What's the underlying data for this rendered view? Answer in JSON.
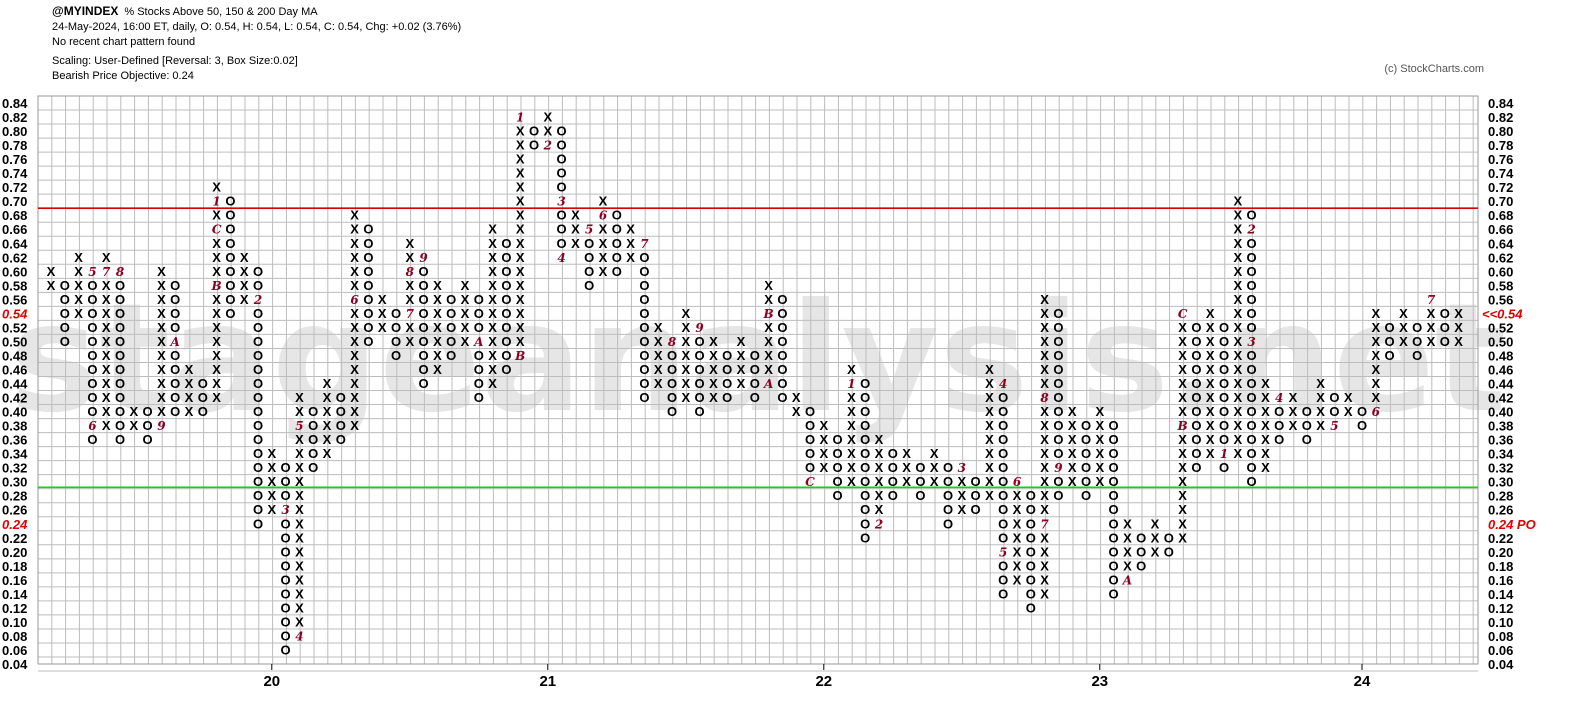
{
  "header": {
    "symbol": "@MYINDEX",
    "description": "% Stocks Above 50, 150 & 200 Day MA",
    "quote_line": "24-May-2024, 16:00 ET, daily, O: 0.54, H: 0.54, L: 0.54, C: 0.54, Chg: +0.02 (3.76%)",
    "pattern_line": "No recent chart pattern found",
    "scaling_line": "Scaling: User-Defined [Reversal: 3, Box Size:0.02]",
    "objective_line": "Bearish Price Objective: 0.24"
  },
  "copyright": "(c) StockCharts.com",
  "watermark": "stageanalysis.net",
  "colors": {
    "x": "#000000",
    "o": "#000000",
    "month": "#8b0020",
    "resistance": "#d00000",
    "support": "#00dd00",
    "grid": "#bdbdbd",
    "price_marker": "#e00000"
  },
  "chart_data": {
    "type": "point-and-figure",
    "box_size": 0.02,
    "reversal": 3,
    "ylim": [
      0.04,
      0.84
    ],
    "y_ticks": [
      0.84,
      0.82,
      0.8,
      0.78,
      0.76,
      0.74,
      0.72,
      0.7,
      0.68,
      0.66,
      0.64,
      0.62,
      0.6,
      0.58,
      0.56,
      0.54,
      0.52,
      0.5,
      0.48,
      0.46,
      0.44,
      0.42,
      0.4,
      0.38,
      0.36,
      0.34,
      0.32,
      0.3,
      0.28,
      0.26,
      0.24,
      0.22,
      0.2,
      0.18,
      0.16,
      0.14,
      0.12,
      0.1,
      0.08,
      0.06,
      0.04
    ],
    "year_labels": [
      {
        "label": "20",
        "column": 16
      },
      {
        "label": "21",
        "column": 36
      },
      {
        "label": "22",
        "column": 56
      },
      {
        "label": "23",
        "column": 76
      },
      {
        "label": "24",
        "column": 95
      }
    ],
    "horizontal_lines": [
      {
        "name": "resistance",
        "value": 0.69
      },
      {
        "name": "support",
        "value": 0.292
      }
    ],
    "last_price": {
      "value": 0.54,
      "label_right": "<<0.54",
      "label_left": "0.54"
    },
    "price_objective": {
      "value": 0.24,
      "label_right": "0.24 PO",
      "label_left": "0.24"
    },
    "columns": [
      {
        "t": "X",
        "lo": 0.58,
        "hi": 0.6
      },
      {
        "t": "O",
        "lo": 0.5,
        "hi": 0.58
      },
      {
        "t": "X",
        "lo": 0.54,
        "hi": 0.62
      },
      {
        "t": "O",
        "lo": 0.36,
        "hi": 0.6,
        "marks": [
          {
            "v": 0.6,
            "m": "5"
          },
          {
            "v": 0.38,
            "m": "6"
          }
        ]
      },
      {
        "t": "X",
        "lo": 0.38,
        "hi": 0.62,
        "marks": [
          {
            "v": 0.6,
            "m": "7"
          }
        ]
      },
      {
        "t": "O",
        "lo": 0.36,
        "hi": 0.6,
        "marks": [
          {
            "v": 0.6,
            "m": "8"
          }
        ]
      },
      {
        "t": "X",
        "lo": 0.38,
        "hi": 0.4
      },
      {
        "t": "O",
        "lo": 0.36,
        "hi": 0.4
      },
      {
        "t": "X",
        "lo": 0.38,
        "hi": 0.6,
        "marks": [
          {
            "v": 0.38,
            "m": "9"
          }
        ]
      },
      {
        "t": "O",
        "lo": 0.4,
        "hi": 0.58,
        "marks": [
          {
            "v": 0.5,
            "m": "A"
          }
        ]
      },
      {
        "t": "X",
        "lo": 0.4,
        "hi": 0.46
      },
      {
        "t": "O",
        "lo": 0.4,
        "hi": 0.44
      },
      {
        "t": "X",
        "lo": 0.42,
        "hi": 0.72,
        "marks": [
          {
            "v": 0.7,
            "m": "1"
          },
          {
            "v": 0.58,
            "m": "B"
          },
          {
            "v": 0.66,
            "m": "C"
          }
        ]
      },
      {
        "t": "O",
        "lo": 0.54,
        "hi": 0.7
      },
      {
        "t": "X",
        "lo": 0.56,
        "hi": 0.62
      },
      {
        "t": "O",
        "lo": 0.24,
        "hi": 0.6,
        "marks": [
          {
            "v": 0.56,
            "m": "2"
          }
        ]
      },
      {
        "t": "X",
        "lo": 0.26,
        "hi": 0.34
      },
      {
        "t": "O",
        "lo": 0.06,
        "hi": 0.32,
        "marks": [
          {
            "v": 0.26,
            "m": "3"
          }
        ]
      },
      {
        "t": "X",
        "lo": 0.08,
        "hi": 0.42,
        "marks": [
          {
            "v": 0.08,
            "m": "4"
          },
          {
            "v": 0.38,
            "m": "5"
          }
        ]
      },
      {
        "t": "O",
        "lo": 0.32,
        "hi": 0.4
      },
      {
        "t": "X",
        "lo": 0.34,
        "hi": 0.44
      },
      {
        "t": "O",
        "lo": 0.36,
        "hi": 0.42
      },
      {
        "t": "X",
        "lo": 0.38,
        "hi": 0.68,
        "marks": [
          {
            "v": 0.56,
            "m": "6"
          }
        ]
      },
      {
        "t": "O",
        "lo": 0.5,
        "hi": 0.66
      },
      {
        "t": "X",
        "lo": 0.52,
        "hi": 0.56
      },
      {
        "t": "O",
        "lo": 0.48,
        "hi": 0.54
      },
      {
        "t": "X",
        "lo": 0.5,
        "hi": 0.64,
        "marks": [
          {
            "v": 0.54,
            "m": "7"
          },
          {
            "v": 0.6,
            "m": "8"
          }
        ]
      },
      {
        "t": "O",
        "lo": 0.44,
        "hi": 0.62,
        "marks": [
          {
            "v": 0.62,
            "m": "9"
          }
        ]
      },
      {
        "t": "X",
        "lo": 0.46,
        "hi": 0.58
      },
      {
        "t": "O",
        "lo": 0.48,
        "hi": 0.56
      },
      {
        "t": "X",
        "lo": 0.5,
        "hi": 0.58
      },
      {
        "t": "O",
        "lo": 0.42,
        "hi": 0.56,
        "marks": [
          {
            "v": 0.5,
            "m": "A"
          }
        ]
      },
      {
        "t": "X",
        "lo": 0.44,
        "hi": 0.66
      },
      {
        "t": "O",
        "lo": 0.46,
        "hi": 0.64
      },
      {
        "t": "X",
        "lo": 0.48,
        "hi": 0.82,
        "marks": [
          {
            "v": 0.82,
            "m": "1"
          },
          {
            "v": 0.48,
            "m": "B"
          }
        ]
      },
      {
        "t": "O",
        "lo": 0.78,
        "hi": 0.8
      },
      {
        "t": "X",
        "lo": 0.78,
        "hi": 0.82,
        "marks": [
          {
            "v": 0.78,
            "m": "2"
          }
        ]
      },
      {
        "t": "O",
        "lo": 0.62,
        "hi": 0.8,
        "marks": [
          {
            "v": 0.7,
            "m": "3"
          },
          {
            "v": 0.62,
            "m": "4"
          }
        ]
      },
      {
        "t": "X",
        "lo": 0.64,
        "hi": 0.68
      },
      {
        "t": "O",
        "lo": 0.58,
        "hi": 0.66,
        "marks": [
          {
            "v": 0.66,
            "m": "5"
          }
        ]
      },
      {
        "t": "X",
        "lo": 0.6,
        "hi": 0.7,
        "marks": [
          {
            "v": 0.68,
            "m": "6"
          }
        ]
      },
      {
        "t": "O",
        "lo": 0.6,
        "hi": 0.68
      },
      {
        "t": "X",
        "lo": 0.62,
        "hi": 0.66
      },
      {
        "t": "O",
        "lo": 0.42,
        "hi": 0.64,
        "marks": [
          {
            "v": 0.64,
            "m": "7"
          }
        ]
      },
      {
        "t": "X",
        "lo": 0.44,
        "hi": 0.52
      },
      {
        "t": "O",
        "lo": 0.4,
        "hi": 0.5,
        "marks": [
          {
            "v": 0.5,
            "m": "8"
          }
        ]
      },
      {
        "t": "X",
        "lo": 0.42,
        "hi": 0.54
      },
      {
        "t": "O",
        "lo": 0.4,
        "hi": 0.52,
        "marks": [
          {
            "v": 0.52,
            "m": "9"
          }
        ]
      },
      {
        "t": "X",
        "lo": 0.42,
        "hi": 0.5
      },
      {
        "t": "O",
        "lo": 0.42,
        "hi": 0.48
      },
      {
        "t": "X",
        "lo": 0.44,
        "hi": 0.5
      },
      {
        "t": "O",
        "lo": 0.42,
        "hi": 0.48
      },
      {
        "t": "X",
        "lo": 0.44,
        "hi": 0.58,
        "marks": [
          {
            "v": 0.54,
            "m": "B"
          },
          {
            "v": 0.44,
            "m": "A"
          }
        ]
      },
      {
        "t": "O",
        "lo": 0.42,
        "hi": 0.56
      },
      {
        "t": "X",
        "lo": 0.4,
        "hi": 0.42
      },
      {
        "t": "O",
        "lo": 0.3,
        "hi": 0.4,
        "marks": [
          {
            "v": 0.3,
            "m": "C"
          }
        ]
      },
      {
        "t": "X",
        "lo": 0.32,
        "hi": 0.38
      },
      {
        "t": "O",
        "lo": 0.28,
        "hi": 0.36
      },
      {
        "t": "X",
        "lo": 0.3,
        "hi": 0.46,
        "marks": [
          {
            "v": 0.44,
            "m": "1"
          }
        ]
      },
      {
        "t": "O",
        "lo": 0.22,
        "hi": 0.44
      },
      {
        "t": "X",
        "lo": 0.24,
        "hi": 0.36,
        "marks": [
          {
            "v": 0.24,
            "m": "2"
          }
        ]
      },
      {
        "t": "O",
        "lo": 0.28,
        "hi": 0.34
      },
      {
        "t": "X",
        "lo": 0.3,
        "hi": 0.34
      },
      {
        "t": "O",
        "lo": 0.28,
        "hi": 0.32
      },
      {
        "t": "X",
        "lo": 0.3,
        "hi": 0.34
      },
      {
        "t": "O",
        "lo": 0.24,
        "hi": 0.32
      },
      {
        "t": "X",
        "lo": 0.26,
        "hi": 0.32,
        "marks": [
          {
            "v": 0.32,
            "m": "3"
          }
        ]
      },
      {
        "t": "O",
        "lo": 0.26,
        "hi": 0.3
      },
      {
        "t": "X",
        "lo": 0.28,
        "hi": 0.46
      },
      {
        "t": "O",
        "lo": 0.14,
        "hi": 0.44,
        "marks": [
          {
            "v": 0.44,
            "m": "4"
          },
          {
            "v": 0.2,
            "m": "5"
          }
        ]
      },
      {
        "t": "X",
        "lo": 0.16,
        "hi": 0.3,
        "marks": [
          {
            "v": 0.3,
            "m": "6"
          }
        ]
      },
      {
        "t": "O",
        "lo": 0.12,
        "hi": 0.28
      },
      {
        "t": "X",
        "lo": 0.14,
        "hi": 0.56,
        "marks": [
          {
            "v": 0.24,
            "m": "7"
          },
          {
            "v": 0.42,
            "m": "8"
          }
        ]
      },
      {
        "t": "O",
        "lo": 0.28,
        "hi": 0.54,
        "marks": [
          {
            "v": 0.32,
            "m": "9"
          }
        ]
      },
      {
        "t": "X",
        "lo": 0.3,
        "hi": 0.4
      },
      {
        "t": "O",
        "lo": 0.28,
        "hi": 0.38
      },
      {
        "t": "X",
        "lo": 0.3,
        "hi": 0.4
      },
      {
        "t": "O",
        "lo": 0.14,
        "hi": 0.38
      },
      {
        "t": "X",
        "lo": 0.16,
        "hi": 0.24,
        "marks": [
          {
            "v": 0.16,
            "m": "A"
          }
        ]
      },
      {
        "t": "O",
        "lo": 0.18,
        "hi": 0.22
      },
      {
        "t": "X",
        "lo": 0.2,
        "hi": 0.24
      },
      {
        "t": "O",
        "lo": 0.2,
        "hi": 0.22
      },
      {
        "t": "X",
        "lo": 0.22,
        "hi": 0.54,
        "marks": [
          {
            "v": 0.38,
            "m": "B"
          },
          {
            "v": 0.54,
            "m": "C"
          }
        ]
      },
      {
        "t": "O",
        "lo": 0.32,
        "hi": 0.52
      },
      {
        "t": "X",
        "lo": 0.34,
        "hi": 0.54
      },
      {
        "t": "O",
        "lo": 0.32,
        "hi": 0.52,
        "marks": [
          {
            "v": 0.34,
            "m": "1"
          }
        ]
      },
      {
        "t": "X",
        "lo": 0.34,
        "hi": 0.7
      },
      {
        "t": "O",
        "lo": 0.3,
        "hi": 0.68,
        "marks": [
          {
            "v": 0.66,
            "m": "2"
          },
          {
            "v": 0.5,
            "m": "3"
          }
        ]
      },
      {
        "t": "X",
        "lo": 0.32,
        "hi": 0.44
      },
      {
        "t": "O",
        "lo": 0.36,
        "hi": 0.42,
        "marks": [
          {
            "v": 0.42,
            "m": "4"
          }
        ]
      },
      {
        "t": "X",
        "lo": 0.38,
        "hi": 0.42
      },
      {
        "t": "O",
        "lo": 0.36,
        "hi": 0.4
      },
      {
        "t": "X",
        "lo": 0.38,
        "hi": 0.44
      },
      {
        "t": "O",
        "lo": 0.38,
        "hi": 0.42,
        "marks": [
          {
            "v": 0.38,
            "m": "5"
          }
        ]
      },
      {
        "t": "X",
        "lo": 0.4,
        "hi": 0.42
      },
      {
        "t": "O",
        "lo": 0.38,
        "hi": 0.4
      },
      {
        "t": "X",
        "lo": 0.4,
        "hi": 0.54,
        "marks": [
          {
            "v": 0.4,
            "m": "6"
          }
        ]
      },
      {
        "t": "O",
        "lo": 0.48,
        "hi": 0.52
      },
      {
        "t": "X",
        "lo": 0.5,
        "hi": 0.54
      },
      {
        "t": "O",
        "lo": 0.48,
        "hi": 0.52
      },
      {
        "t": "X",
        "lo": 0.5,
        "hi": 0.56,
        "marks": [
          {
            "v": 0.56,
            "m": "7"
          }
        ]
      },
      {
        "t": "O",
        "lo": 0.5,
        "hi": 0.54
      },
      {
        "t": "X",
        "lo": 0.5,
        "hi": 0.54
      }
    ]
  }
}
